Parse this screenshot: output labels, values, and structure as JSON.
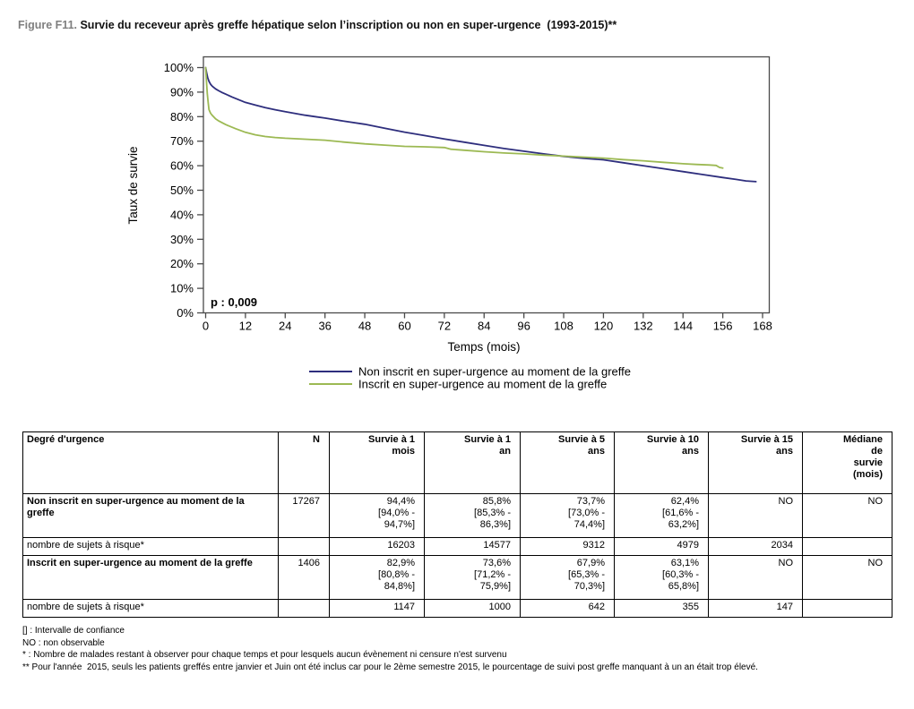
{
  "title": {
    "prefix": "Figure F11. ",
    "text": "Survie du receveur après greffe hépatique selon l’inscription ou non en super-urgence  (1993-2015)**"
  },
  "chart_data": {
    "type": "line",
    "title": "",
    "xlabel": "Temps (mois)",
    "ylabel": "Taux de survie",
    "xlim": [
      0,
      168
    ],
    "ylim": [
      0,
      100
    ],
    "x_ticks": [
      0,
      12,
      24,
      36,
      48,
      60,
      72,
      84,
      96,
      108,
      120,
      132,
      144,
      156,
      168
    ],
    "y_ticks": [
      0,
      10,
      20,
      30,
      40,
      50,
      60,
      70,
      80,
      90,
      100
    ],
    "y_tick_suffix": "%",
    "grid": false,
    "legend_position": "bottom",
    "annotation": "p : 0,009",
    "axis_color": "#4a4a4a",
    "series": [
      {
        "name": "Non inscrit en super-urgence au moment de la greffe",
        "color": "#2e2e7d",
        "points": [
          [
            0,
            100
          ],
          [
            0.3,
            97.8
          ],
          [
            0.6,
            96
          ],
          [
            1,
            94.4
          ],
          [
            1.5,
            93.2
          ],
          [
            2,
            92.4
          ],
          [
            3,
            91.3
          ],
          [
            4,
            90.5
          ],
          [
            5,
            89.8
          ],
          [
            6,
            89.2
          ],
          [
            8,
            88.0
          ],
          [
            10,
            86.9
          ],
          [
            12,
            85.8
          ],
          [
            15,
            84.7
          ],
          [
            18,
            83.7
          ],
          [
            21,
            82.8
          ],
          [
            24,
            82.0
          ],
          [
            27,
            81.3
          ],
          [
            30,
            80.6
          ],
          [
            33,
            80.0
          ],
          [
            36,
            79.4
          ],
          [
            42,
            78.1
          ],
          [
            48,
            76.9
          ],
          [
            54,
            75.3
          ],
          [
            60,
            73.7
          ],
          [
            66,
            72.3
          ],
          [
            72,
            70.9
          ],
          [
            78,
            69.6
          ],
          [
            84,
            68.3
          ],
          [
            90,
            67.0
          ],
          [
            96,
            65.9
          ],
          [
            102,
            64.8
          ],
          [
            108,
            63.8
          ],
          [
            114,
            63.0
          ],
          [
            120,
            62.4
          ],
          [
            126,
            61.2
          ],
          [
            132,
            60.0
          ],
          [
            138,
            58.8
          ],
          [
            144,
            57.6
          ],
          [
            150,
            56.4
          ],
          [
            156,
            55.2
          ],
          [
            160,
            54.4
          ],
          [
            163,
            53.8
          ],
          [
            166,
            53.5
          ]
        ]
      },
      {
        "name": "Inscrit en super-urgence au moment de la greffe",
        "color": "#9cb953",
        "points": [
          [
            0,
            100
          ],
          [
            0.25,
            94.5
          ],
          [
            0.5,
            89.5
          ],
          [
            0.75,
            85.8
          ],
          [
            1,
            82.9
          ],
          [
            1.5,
            81.4
          ],
          [
            2,
            80.5
          ],
          [
            3,
            79.1
          ],
          [
            4,
            78.2
          ],
          [
            6,
            76.8
          ],
          [
            9,
            75.1
          ],
          [
            12,
            73.6
          ],
          [
            15,
            72.6
          ],
          [
            18,
            71.9
          ],
          [
            21,
            71.5
          ],
          [
            24,
            71.2
          ],
          [
            30,
            70.8
          ],
          [
            36,
            70.4
          ],
          [
            42,
            69.6
          ],
          [
            48,
            68.9
          ],
          [
            54,
            68.4
          ],
          [
            60,
            67.9
          ],
          [
            66,
            67.7
          ],
          [
            72,
            67.4
          ],
          [
            74,
            66.7
          ],
          [
            78,
            66.3
          ],
          [
            84,
            65.7
          ],
          [
            90,
            65.2
          ],
          [
            96,
            64.8
          ],
          [
            102,
            64.3
          ],
          [
            108,
            63.9
          ],
          [
            114,
            63.5
          ],
          [
            120,
            63.1
          ],
          [
            126,
            62.5
          ],
          [
            132,
            62.0
          ],
          [
            138,
            61.4
          ],
          [
            144,
            60.8
          ],
          [
            148,
            60.5
          ],
          [
            152,
            60.3
          ],
          [
            154,
            60.1
          ],
          [
            155,
            59.3
          ],
          [
            156,
            59.0
          ]
        ]
      }
    ]
  },
  "table": {
    "columns": [
      "Degré d'urgence",
      "N",
      "Survie à 1\nmois",
      "Survie à 1\nan",
      "Survie à 5\nans",
      "Survie à 10\nans",
      "Survie à 15\nans",
      "Médiane\nde\nsurvie\n(mois)"
    ],
    "rows": [
      {
        "type": "group",
        "cells": [
          "Non inscrit en super-urgence au moment de la greffe",
          "17267",
          "94,4%\n[94,0% -\n94,7%]",
          "85,8%\n[85,3% -\n86,3%]",
          "73,7%\n[73,0% -\n74,4%]",
          "62,4%\n[61,6% -\n63,2%]",
          "NO",
          "NO"
        ]
      },
      {
        "type": "risk",
        "cells": [
          "nombre de sujets à risque*",
          "",
          "16203",
          "14577",
          "9312",
          "4979",
          "2034",
          ""
        ]
      },
      {
        "type": "group",
        "cells": [
          "Inscrit en super-urgence au moment de la greffe",
          "1406",
          "82,9%\n[80,8% -\n84,8%]",
          "73,6%\n[71,2% -\n75,9%]",
          "67,9%\n[65,3% -\n70,3%]",
          "63,1%\n[60,3% -\n65,8%]",
          "NO",
          "NO"
        ]
      },
      {
        "type": "risk",
        "cells": [
          "nombre de sujets à risque*",
          "",
          "1147",
          "1000",
          "642",
          "355",
          "147",
          ""
        ]
      }
    ]
  },
  "footnotes": [
    "[] : Intervalle de confiance",
    "NO : non observable",
    "* : Nombre de malades restant à observer pour chaque temps et pour lesquels aucun évènement ni censure n'est survenu",
    "** Pour l'année  2015, seuls les patients greffés entre janvier et Juin ont été inclus car pour le 2ème semestre 2015, le pourcentage de suivi post greffe manquant à un an était trop élevé."
  ]
}
